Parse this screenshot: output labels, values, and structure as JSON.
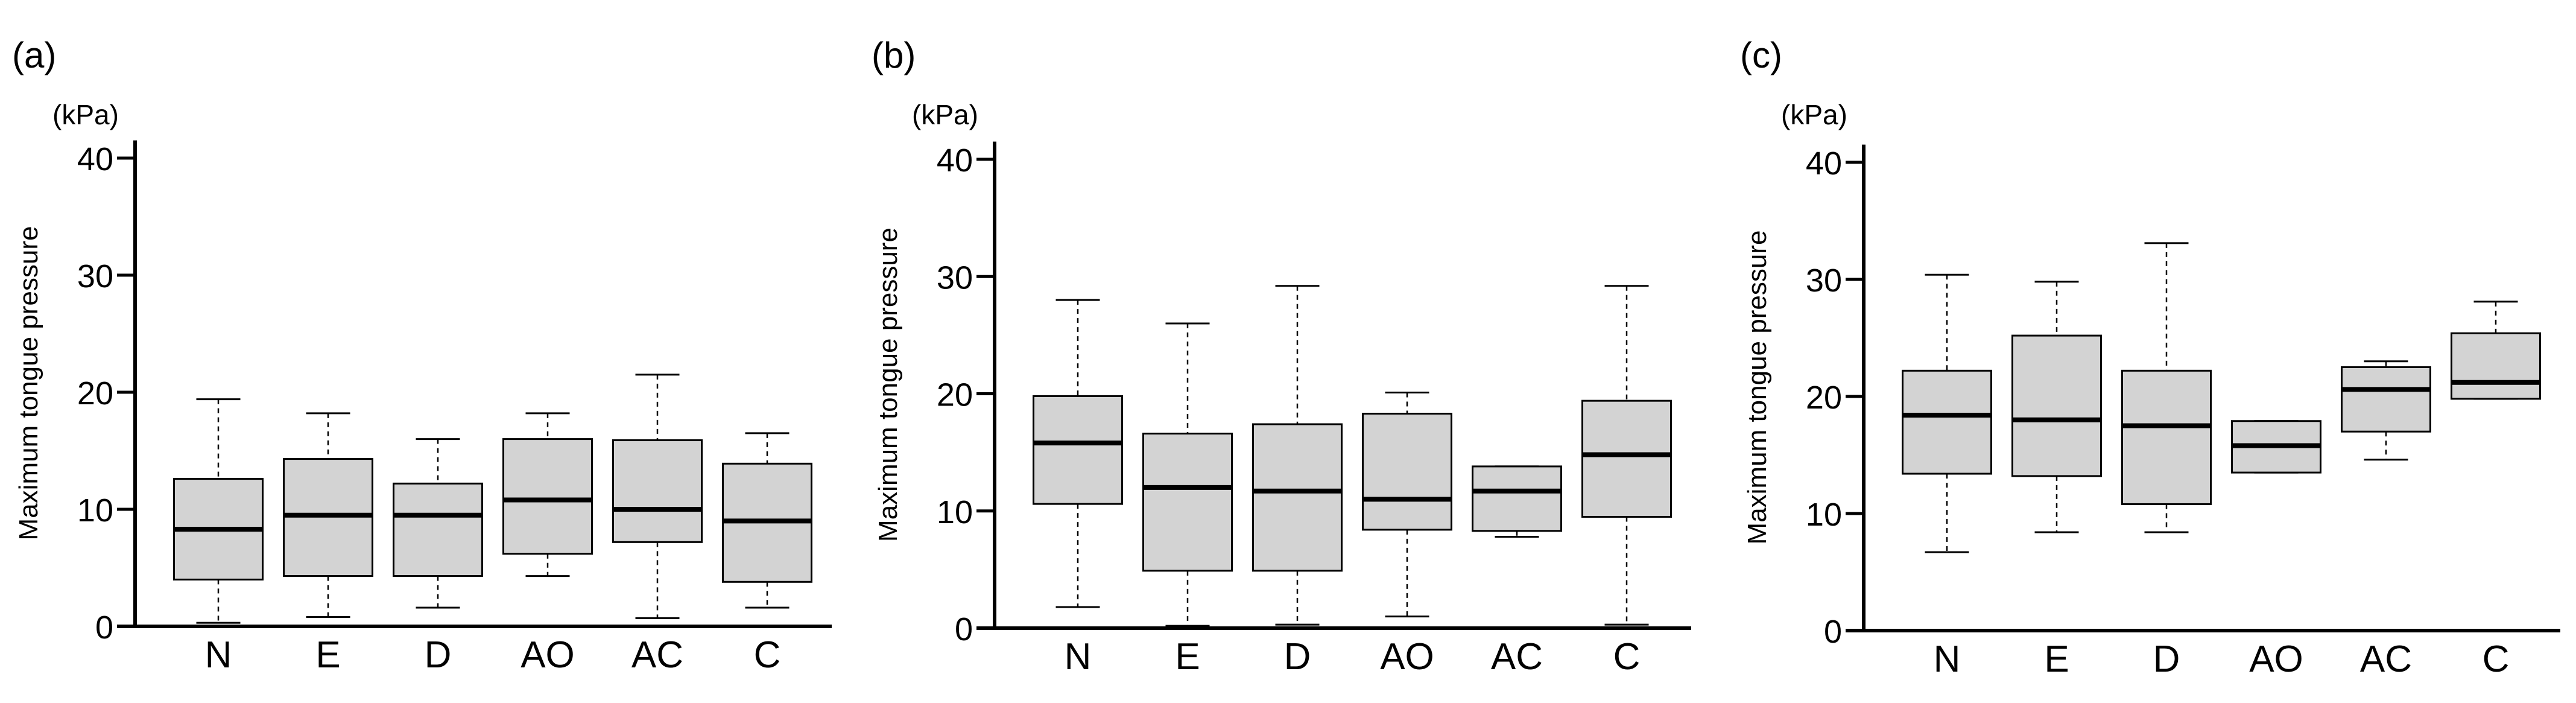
{
  "chart_data": [
    {
      "type": "box",
      "panel_label": "(a)",
      "unit_label": "(kPa)",
      "ylabel": "Maximum tongue pressure",
      "ylim": [
        0,
        41
      ],
      "yticks": [
        "0",
        "10",
        "20",
        "30",
        "40"
      ],
      "categories": [
        "N",
        "E",
        "D",
        "AO",
        "AC",
        "C"
      ],
      "boxes": [
        {
          "min": 0.3,
          "q1": 4.0,
          "median": 8.3,
          "q3": 12.6,
          "max": 19.4
        },
        {
          "min": 0.8,
          "q1": 4.3,
          "median": 9.5,
          "q3": 14.3,
          "max": 18.2
        },
        {
          "min": 1.6,
          "q1": 4.3,
          "median": 9.5,
          "q3": 12.2,
          "max": 16.0
        },
        {
          "min": 4.3,
          "q1": 6.2,
          "median": 10.8,
          "q3": 16.0,
          "max": 18.2
        },
        {
          "min": 0.7,
          "q1": 7.2,
          "median": 10.0,
          "q3": 15.9,
          "max": 21.5
        },
        {
          "min": 1.6,
          "q1": 3.8,
          "median": 9.0,
          "q3": 13.9,
          "max": 16.5
        }
      ]
    },
    {
      "type": "box",
      "panel_label": "(b)",
      "unit_label": "(kPa)",
      "ylabel": "Maximum tongue pressure",
      "ylim": [
        0,
        41
      ],
      "yticks": [
        "0",
        "10",
        "20",
        "30",
        "40"
      ],
      "categories": [
        "N",
        "E",
        "D",
        "AO",
        "AC",
        "C"
      ],
      "boxes": [
        {
          "min": 1.8,
          "q1": 10.6,
          "median": 15.8,
          "q3": 19.8,
          "max": 28.0
        },
        {
          "min": 0.2,
          "q1": 4.9,
          "median": 12.0,
          "q3": 16.6,
          "max": 26.0
        },
        {
          "min": 0.3,
          "q1": 4.9,
          "median": 11.7,
          "q3": 17.4,
          "max": 29.2
        },
        {
          "min": 1.0,
          "q1": 8.4,
          "median": 11.0,
          "q3": 18.3,
          "max": 20.1
        },
        {
          "min": 7.8,
          "q1": 8.3,
          "median": 11.7,
          "q3": 13.8,
          "max": 13.8
        },
        {
          "min": 0.3,
          "q1": 9.5,
          "median": 14.8,
          "q3": 19.4,
          "max": 29.2
        }
      ]
    },
    {
      "type": "box",
      "panel_label": "(c)",
      "unit_label": "(kPa)",
      "ylabel": "Maximum tongue pressure",
      "ylim": [
        0,
        41
      ],
      "yticks": [
        "0",
        "10",
        "20",
        "30",
        "40"
      ],
      "categories": [
        "N",
        "E",
        "D",
        "AO",
        "AC",
        "C"
      ],
      "boxes": [
        {
          "min": 6.7,
          "q1": 13.4,
          "median": 18.4,
          "q3": 22.2,
          "max": 30.4
        },
        {
          "min": 8.4,
          "q1": 13.2,
          "median": 18.0,
          "q3": 25.2,
          "max": 29.8
        },
        {
          "min": 8.4,
          "q1": 10.8,
          "median": 17.5,
          "q3": 22.2,
          "max": 33.1
        },
        {
          "min": 13.5,
          "q1": 13.5,
          "median": 15.8,
          "q3": 17.9,
          "max": 17.9
        },
        {
          "min": 14.6,
          "q1": 17.0,
          "median": 20.6,
          "q3": 22.5,
          "max": 23.0
        },
        {
          "min": 19.8,
          "q1": 19.8,
          "median": 21.2,
          "q3": 25.4,
          "max": 28.1
        }
      ]
    }
  ],
  "colors": {
    "box_fill": "#d3d3d3",
    "line": "#000000"
  }
}
